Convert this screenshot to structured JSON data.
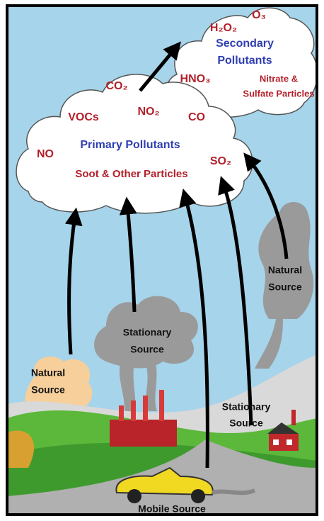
{
  "secondary": {
    "title_lines": [
      "Secondary",
      "Pollutants"
    ],
    "items": [
      "H₂O₂",
      "O₃",
      "HNO₃"
    ],
    "particles_lines": [
      "Nitrate &",
      "Sulfate Particles"
    ]
  },
  "primary": {
    "title": "Primary Pollutants",
    "items": [
      "CO₂",
      "VOCs",
      "NO₂",
      "CO",
      "NO",
      "SO₂"
    ],
    "particles": "Soot & Other Particles"
  },
  "sources": [
    {
      "lines": [
        "Natural",
        "Source"
      ]
    },
    {
      "lines": [
        "Stationary",
        "Source"
      ]
    },
    {
      "lines": [
        "Natural",
        "Source"
      ]
    },
    {
      "lines": [
        "Stationary",
        "Source"
      ]
    },
    {
      "lines": [
        "Mobile Source"
      ]
    }
  ]
}
